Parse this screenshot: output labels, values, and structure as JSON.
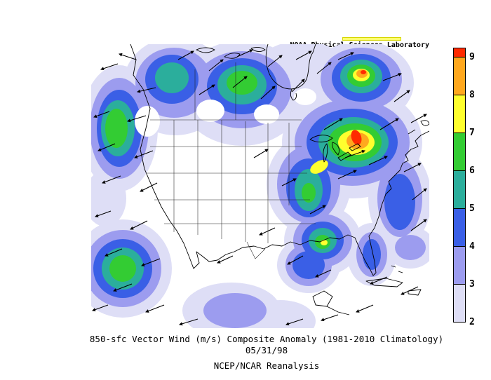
{
  "header": {
    "lab_label": "NOAA Physical Sciences Laboratory"
  },
  "footer": {
    "title": "850-sfc Vector Wind (m/s) Composite Anomaly (1981-2010 Climatology)",
    "date": "05/31/98",
    "source": "NCEP/NCAR Reanalysis"
  },
  "chart_data": {
    "type": "heatmap",
    "map_region": "North America",
    "variable": "850-sfc vector wind composite anomaly magnitude",
    "units": "m/s",
    "title": "850-sfc Vector Wind (m/s) Composite Anomaly (1981-2010 Climatology)",
    "date": "05/31/98",
    "climatology_period": "1981-2010",
    "source": "NCEP/NCAR Reanalysis",
    "overlays": [
      "wind anomaly vectors (arrows)",
      "coastlines and state/province borders"
    ],
    "colorbar": {
      "orientation": "vertical",
      "position": "right",
      "levels": [
        2,
        3,
        4,
        5,
        6,
        7,
        8,
        9
      ],
      "tick_labels": [
        "2",
        "3",
        "4",
        "5",
        "6",
        "7",
        "8",
        "9"
      ],
      "segment_colors_bottom_to_top": [
        "#DEDEF6",
        "#9C9CEF",
        "#3A5FE6",
        "#2BAE9C",
        "#33CC33",
        "#FFFF2E",
        "#FFA81E",
        "#FF2A00"
      ]
    },
    "anomaly_highlights": [
      {
        "region": "Great Lakes / southeastern Canada",
        "value_mps": "8-9+",
        "shade": "red-orange maximum"
      },
      {
        "region": "northeastern Canada (top right of map)",
        "value_mps": "8-9+",
        "shade": "red-orange maximum"
      },
      {
        "region": "offshore Pacific / west edge of map",
        "value_mps": "5-7",
        "shade": "green"
      },
      {
        "region": "central and western United States",
        "value_mps": "< 2",
        "shade": "white (below lowest contour)"
      },
      {
        "region": "southeastern US / Gulf coast",
        "value_mps": "3-7",
        "shade": "blue-green patches"
      }
    ]
  }
}
